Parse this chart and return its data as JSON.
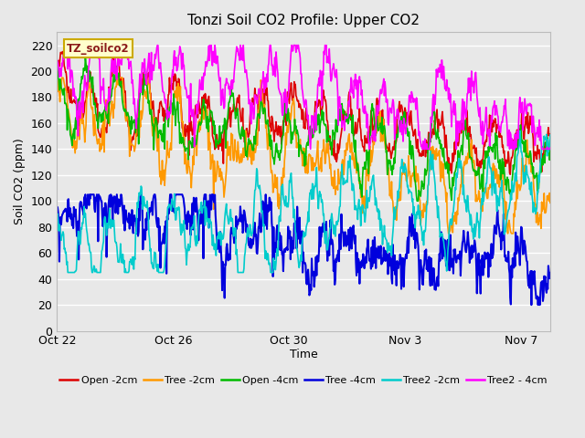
{
  "title": "Tonzi Soil CO2 Profile: Upper CO2",
  "xlabel": "Time",
  "ylabel": "Soil CO2 (ppm)",
  "ylim": [
    0,
    230
  ],
  "yticks": [
    0,
    20,
    40,
    60,
    80,
    100,
    120,
    140,
    160,
    180,
    200,
    220
  ],
  "bg_color": "#e8e8e8",
  "grid_color": "#ffffff",
  "watermark_text": "TZ_soilco2",
  "watermark_fg": "#8b1a1a",
  "watermark_bg": "#ffffcc",
  "watermark_edge": "#ccaa00",
  "series": [
    {
      "label": "Open -2cm",
      "color": "#dd0000",
      "lw": 1.2
    },
    {
      "label": "Tree -2cm",
      "color": "#ff9900",
      "lw": 1.2
    },
    {
      "label": "Open -4cm",
      "color": "#00bb00",
      "lw": 1.2
    },
    {
      "label": "Tree -4cm",
      "color": "#0000dd",
      "lw": 1.5
    },
    {
      "label": "Tree2 -2cm",
      "color": "#00cccc",
      "lw": 1.2
    },
    {
      "label": "Tree2 - 4cm",
      "color": "#ff00ff",
      "lw": 1.2
    }
  ],
  "xtick_labels": [
    "Oct 22",
    "Oct 26",
    "Oct 30",
    "Nov 3",
    "Nov 7"
  ],
  "xtick_positions": [
    0,
    4,
    8,
    12,
    16
  ],
  "n_days": 17,
  "pts_per_day": 48,
  "title_fontsize": 11,
  "label_fontsize": 9,
  "tick_fontsize": 9
}
